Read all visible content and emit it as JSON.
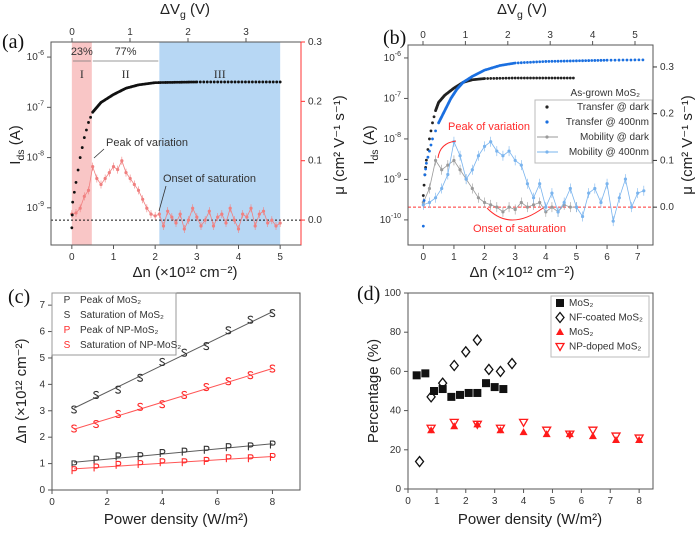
{
  "chart_data": [
    {
      "panel": "(a)",
      "type": "scatter",
      "xlabel": "Δn (×10¹² cm⁻²)",
      "top_xlabel": {
        "main": "ΔV",
        "sub": "g",
        "rest": " (V)"
      },
      "ylabel": {
        "main": "I",
        "sub": "ds",
        "rest": " (A)"
      },
      "y2label": "μ (cm² V⁻¹ s⁻¹)",
      "xlim": [
        -0.5,
        5.5
      ],
      "xticks": [
        0,
        1,
        2,
        3,
        4,
        5
      ],
      "top_xticks": [
        0,
        1,
        2,
        3
      ],
      "yscale": "log",
      "ylim_exp": [
        -9.74,
        -5.7
      ],
      "yticks_exp": [
        -9,
        -8,
        -7,
        -6
      ],
      "y2lim": [
        -0.042,
        0.3
      ],
      "y2ticks": [
        "0.0",
        "0.1",
        "0.2",
        "0.3"
      ],
      "y2_color": "#ff3333",
      "regions": [
        {
          "label": "I",
          "from": 0,
          "to": 0.48,
          "color": "#f9c6c6",
          "percent": "23%"
        },
        {
          "label": "II",
          "from": 0.48,
          "to": 2.1,
          "color": "#ffffff",
          "percent": "77%"
        },
        {
          "label": "III",
          "from": 2.1,
          "to": 5.0,
          "color": "#b7d7f4"
        }
      ],
      "annotations": [
        "Peak of variation",
        "Onset of saturation"
      ],
      "series": [
        {
          "kind": "transfer",
          "axis": "left",
          "color": "#111111",
          "x": [
            0,
            0.02,
            0.1,
            0.2,
            0.3,
            0.4,
            0.5,
            0.7,
            1.0,
            1.3,
            1.6,
            2.0,
            2.5,
            3.0,
            4.0,
            5.0
          ],
          "y": [
            4e-10,
            1.3e-09,
            3.2e-09,
            1e-08,
            2.5e-08,
            5e-08,
            8e-08,
            1.25e-07,
            1.8e-07,
            2.4e-07,
            2.8e-07,
            3.1e-07,
            3.15e-07,
            3.2e-07,
            3.2e-07,
            3.2e-07
          ]
        },
        {
          "kind": "mobility",
          "axis": "right",
          "color": "#f08080",
          "x_step": 0.1,
          "y": [
            0.01,
            0.012,
            0.02,
            0.04,
            0.05,
            0.09,
            0.07,
            0.06,
            0.07,
            0.08,
            0.09,
            0.085,
            0.1,
            0.08,
            0.07,
            0.06,
            0.05,
            0.035,
            0.02,
            0.01,
            0.007,
            0.01,
            -0.01,
            0.015,
            0.005,
            -0.005,
            0.01,
            -0.015,
            0.0,
            0.02,
            0.005,
            -0.01,
            0.0,
            0.015,
            -0.01,
            0.005,
            0.01,
            -0.005,
            0.02,
            0.0,
            -0.015,
            0.01,
            0.005,
            0.02,
            -0.01,
            0.01,
            0.015,
            -0.005,
            0.0,
            -0.01,
            -0.005
          ]
        }
      ],
      "reference_line": {
        "axis": "right",
        "value": 0.0,
        "style": "dotted",
        "color": "#111111"
      }
    },
    {
      "panel": "(b)",
      "type": "scatter",
      "xlabel": "Δn (×10¹² cm⁻²)",
      "top_xlabel": {
        "main": "ΔV",
        "sub": "g",
        "rest": " (V)"
      },
      "ylabel": {
        "main": "I",
        "sub": "ds",
        "rest": " (A)"
      },
      "y2label": "μ (cm² V⁻¹ s⁻¹)",
      "xlim": [
        -0.5,
        7.5
      ],
      "xticks": [
        0,
        1,
        2,
        3,
        4,
        5,
        6,
        7
      ],
      "top_xticks": [
        0,
        1,
        2,
        3,
        4,
        5
      ],
      "yscale": "log",
      "ylim_exp": [
        -10.62,
        -5.68
      ],
      "yticks_exp": [
        -10,
        -9,
        -8,
        -7,
        -6
      ],
      "y2lim": [
        -0.081,
        0.347
      ],
      "y2ticks": [
        "0.0",
        "0.1",
        "0.2",
        "0.3"
      ],
      "legend_title": "As-grown MoS₂",
      "legend_position": "right",
      "annotations": [
        "Peak of variation",
        "Onset of saturation"
      ],
      "series": [
        {
          "name": "Transfer @ dark",
          "kind": "transfer",
          "axis": "left",
          "color": "#222222",
          "x": [
            0,
            0.05,
            0.1,
            0.2,
            0.3,
            0.4,
            0.5,
            0.7,
            1.0,
            1.3,
            1.6,
            2.0,
            3.0,
            4.0,
            5.0
          ],
          "y": [
            4e-10,
            1.3e-09,
            3e-09,
            1e-08,
            2.5e-08,
            5e-08,
            8e-08,
            1.2e-07,
            1.8e-07,
            2.5e-07,
            2.9e-07,
            3.1e-07,
            3.2e-07,
            3.2e-07,
            3.2e-07
          ]
        },
        {
          "name": "Transfer @ 400nm",
          "kind": "transfer",
          "axis": "left",
          "color": "#1a6fe0",
          "x": [
            0,
            0.05,
            0.1,
            0.2,
            0.3,
            0.5,
            0.7,
            0.9,
            1.1,
            1.3,
            1.6,
            2.0,
            2.5,
            3.0,
            4.0,
            5.0,
            6.0,
            7.3
          ],
          "y": [
            7e-11,
            1.3e-09,
            2.5e-09,
            5e-09,
            1e-08,
            2.5e-08,
            5e-08,
            1e-07,
            1.7e-07,
            2.5e-07,
            3.5e-07,
            5e-07,
            6.5e-07,
            7.5e-07,
            8.2e-07,
            8.5e-07,
            8.8e-07,
            9e-07
          ]
        },
        {
          "name": "Mobility @ dark",
          "kind": "mobility",
          "axis": "right",
          "color": "#9a9a9a",
          "x_step": 0.2,
          "y": [
            0.01,
            0.04,
            0.1,
            0.08,
            0.09,
            0.1,
            0.08,
            0.06,
            0.04,
            0.02,
            0.01,
            0.005,
            0.0,
            -0.01,
            0.0,
            -0.005,
            0.01,
            0.0,
            0.005,
            0.01,
            -0.01,
            0.0,
            -0.01,
            0.005,
            0.0,
            0.0
          ]
        },
        {
          "name": "Mobility @ 400nm",
          "kind": "mobility",
          "axis": "right",
          "color": "#7ab4ee",
          "x_step": 0.2,
          "y": [
            0.005,
            0.01,
            0.02,
            0.04,
            0.07,
            0.14,
            0.11,
            0.06,
            0.08,
            0.11,
            0.13,
            0.14,
            0.12,
            0.11,
            0.12,
            0.1,
            0.09,
            0.05,
            0.02,
            0.05,
            0.0,
            0.03,
            -0.01,
            0.01,
            0.04,
            0.0,
            -0.02,
            0.03,
            0.04,
            0.01,
            0.05,
            -0.03,
            0.02,
            0.06,
            0.0,
            0.03,
            0.035
          ]
        }
      ],
      "reference_line": {
        "axis": "right",
        "value": 0.0,
        "style": "dashed",
        "color": "#ff3333"
      }
    },
    {
      "panel": "(c)",
      "type": "scatter",
      "xlabel": "Power density (W/m²)",
      "ylabel": "Δn (×10¹² cm⁻²)",
      "xlim": [
        0,
        9
      ],
      "ylim": [
        0,
        7.46
      ],
      "xticks": [
        0,
        2,
        4,
        6,
        8
      ],
      "yticks": [
        0,
        1,
        2,
        3,
        4,
        5,
        6,
        7
      ],
      "legend_position": "top-left",
      "x": [
        0.8,
        1.6,
        2.4,
        3.2,
        4.0,
        4.8,
        5.6,
        6.4,
        7.2,
        8.0
      ],
      "series": [
        {
          "name": "Peak of MoS₂",
          "marker": "P",
          "color": "#333333",
          "fit": [
            1.05,
            1.75
          ],
          "values": [
            0.97,
            1.15,
            1.27,
            1.28,
            1.4,
            1.45,
            1.52,
            1.62,
            1.65,
            1.72
          ]
        },
        {
          "name": "Saturation of MoS₂",
          "marker": "S",
          "color": "#333333",
          "fit": [
            3.1,
            6.75
          ],
          "values": [
            3.05,
            3.6,
            3.8,
            4.25,
            4.85,
            5.2,
            5.45,
            6.05,
            6.45,
            6.7
          ]
        },
        {
          "name": "Peak of NP-MoS₂",
          "marker": "P",
          "color": "#ff2a2a",
          "fit": [
            0.8,
            1.27
          ],
          "values": [
            0.75,
            0.85,
            0.95,
            0.98,
            1.05,
            1.05,
            1.1,
            1.2,
            1.2,
            1.25
          ]
        },
        {
          "name": "Saturation of NP-MoS₂",
          "marker": "S",
          "color": "#ff2a2a",
          "fit": [
            2.3,
            4.6
          ],
          "values": [
            2.33,
            2.5,
            2.88,
            3.15,
            3.25,
            3.6,
            3.9,
            4.12,
            4.35,
            4.6
          ]
        }
      ]
    },
    {
      "panel": "(d)",
      "type": "scatter",
      "xlabel": "Power density (W/m²)",
      "ylabel": "Percentage (%)",
      "xlim": [
        0,
        8.48
      ],
      "ylim": [
        0,
        100
      ],
      "xticks": [
        0,
        1,
        2,
        3,
        4,
        5,
        6,
        7,
        8
      ],
      "yticks": [
        0,
        20,
        40,
        60,
        80,
        100
      ],
      "legend_position": "top-right",
      "series": [
        {
          "name": "MoS₂",
          "marker": "square",
          "color": "#111111",
          "x": [
            0.3,
            0.6,
            0.9,
            1.2,
            1.5,
            1.8,
            2.1,
            2.4,
            2.7,
            3.0,
            3.3
          ],
          "values": [
            58,
            59,
            50,
            51,
            47,
            48,
            49,
            49,
            54,
            52,
            51
          ]
        },
        {
          "name": "NF-coated MoS₂",
          "marker": "diamond-open",
          "color": "#111111",
          "x": [
            0.4,
            0.8,
            1.2,
            1.6,
            2.0,
            2.4,
            2.8,
            3.2,
            3.6
          ],
          "values": [
            14,
            47,
            54,
            63,
            70,
            76,
            61,
            60,
            64
          ]
        },
        {
          "name": "MoS₂",
          "marker": "triangle-up",
          "color": "#ff1a1a",
          "x": [
            0.8,
            1.6,
            2.4,
            3.2,
            4.0,
            4.8,
            5.6,
            6.4,
            7.2,
            8.0
          ],
          "values": [
            30,
            32,
            33,
            30,
            29,
            28,
            28,
            27,
            25,
            25
          ]
        },
        {
          "name": "NP-doped MoS₂",
          "marker": "triangle-down-open",
          "color": "#ff1a1a",
          "x": [
            0.8,
            1.6,
            2.4,
            3.2,
            4.0,
            4.8,
            5.6,
            6.4,
            7.2,
            8.0
          ],
          "values": [
            31,
            34,
            33,
            31,
            34,
            30,
            28,
            30,
            27,
            26
          ]
        }
      ]
    }
  ]
}
